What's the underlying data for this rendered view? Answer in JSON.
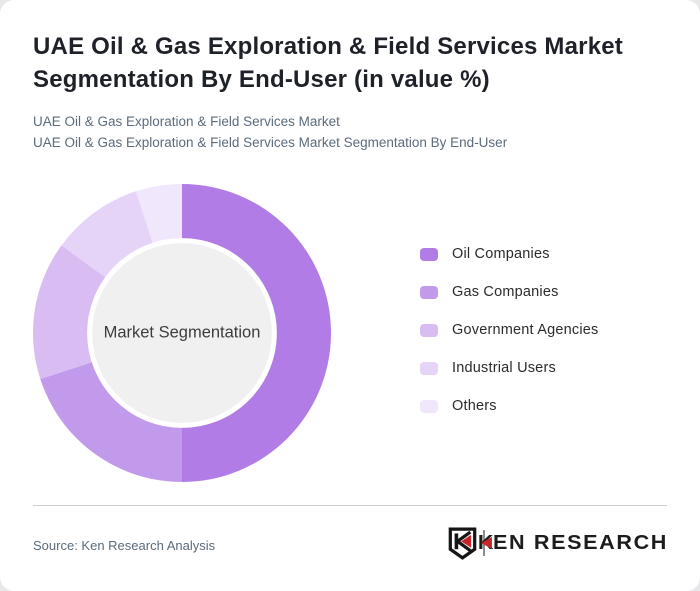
{
  "header": {
    "title": "UAE Oil & Gas Exploration & Field Services Market Segmentation By End-User (in value %)",
    "subtitle_line1": "UAE Oil & Gas Exploration & Field Services Market",
    "subtitle_line2": "UAE Oil & Gas Exploration & Field Services Market Segmentation By End-User"
  },
  "chart_data": {
    "type": "pie",
    "variant": "donut",
    "title": "UAE Oil & Gas Exploration & Field Services Market Segmentation By End-User (in value %)",
    "categories": [
      "Oil Companies",
      "Gas Companies",
      "Government Agencies",
      "Industrial Users",
      "Others"
    ],
    "values": [
      50,
      20,
      15,
      10,
      5
    ],
    "unit": "%",
    "colors": [
      "#b17ce6",
      "#c29aec",
      "#d8bcf2",
      "#e6d3f8",
      "#f1e7fc"
    ],
    "start_angle_deg": 0,
    "direction": "clockwise",
    "inner_hole_ratio": 0.62,
    "hole_fill": "#f0f0f1",
    "hole_rim_color": "#ffffff",
    "center_label": "Market Segmentation",
    "legend_position": "right"
  },
  "footer": {
    "source": "Source: Ken Research Analysis",
    "logo": {
      "part1": "K",
      "part2": "EN RESEARCH",
      "accent_color": "#c8242c"
    }
  }
}
